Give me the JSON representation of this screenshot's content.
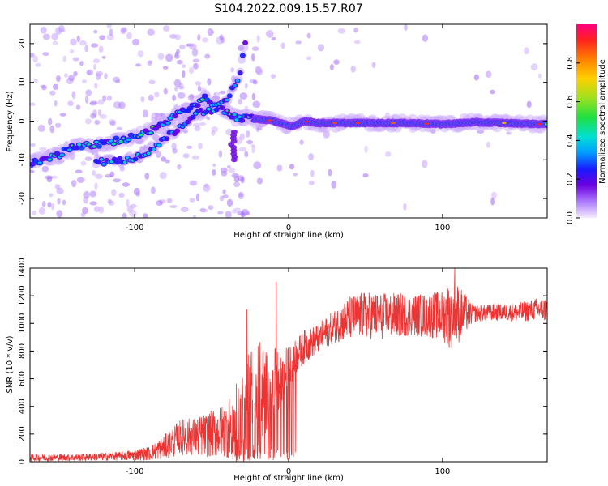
{
  "figure_title": "S104.2022.009.15.57.R07",
  "chart_data": [
    {
      "type": "heatmap",
      "title": "S104.2022.009.15.57.R07",
      "xlabel": "Height of straight line (km)",
      "ylabel": "Frequency (Hz)",
      "xlim": [
        -168,
        168
      ],
      "ylim": [
        -25,
        25
      ],
      "xticks": [
        -100,
        0,
        100
      ],
      "yticks": [
        -20,
        -10,
        0,
        10,
        20
      ],
      "colorbar": {
        "label": "Normalized spectral amplitude",
        "range": [
          0,
          1
        ],
        "ticks": [
          0.0,
          0.2,
          0.4,
          0.6,
          0.8
        ],
        "colormap": [
          "#f2e6ff",
          "#b080ff",
          "#6a00e0",
          "#1a1aff",
          "#00b0ff",
          "#00e0c0",
          "#40e040",
          "#c0e020",
          "#ffd000",
          "#ff8000",
          "#ff2020",
          "#ff0080"
        ]
      },
      "ridge": {
        "description": "dominant frequency trace vs height",
        "points": [
          [
            -168,
            -11
          ],
          [
            -150,
            -9
          ],
          [
            -140,
            -6.5
          ],
          [
            -125,
            -6
          ],
          [
            -110,
            -5
          ],
          [
            -95,
            -3.5
          ],
          [
            -85,
            -1.5
          ],
          [
            -75,
            1
          ],
          [
            -65,
            3
          ],
          [
            -55,
            6
          ],
          [
            -35,
            1
          ],
          [
            -20,
            0.5
          ],
          [
            -12,
            0.2
          ],
          [
            -5,
            -0.5
          ],
          [
            2,
            -1.5
          ],
          [
            10,
            0
          ],
          [
            20,
            -0.5
          ],
          [
            40,
            -0.5
          ],
          [
            60,
            -0.5
          ],
          [
            80,
            -0.5
          ],
          [
            100,
            -0.8
          ],
          [
            120,
            -0.3
          ],
          [
            140,
            -0.5
          ],
          [
            168,
            -0.8
          ]
        ]
      },
      "secondary_ridge": {
        "points": [
          [
            -125,
            -10.5
          ],
          [
            -105,
            -10
          ],
          [
            -92,
            -8
          ],
          [
            -82,
            -5
          ],
          [
            -72,
            -2
          ],
          [
            -62,
            1.5
          ],
          [
            -50,
            3
          ],
          [
            -40,
            5
          ],
          [
            -32,
            12
          ],
          [
            -28,
            20
          ]
        ]
      }
    },
    {
      "type": "line",
      "xlabel": "Height of straight line (km)",
      "ylabel": "SNR (10 * v/v)",
      "xlim": [
        -168,
        168
      ],
      "ylim": [
        0,
        1400
      ],
      "xticks": [
        -100,
        0,
        100
      ],
      "yticks": [
        0,
        200,
        400,
        600,
        800,
        1000,
        1200,
        1400
      ],
      "color": "#ee3333",
      "envelope": {
        "x": [
          -168,
          -140,
          -110,
          -90,
          -80,
          -70,
          -60,
          -50,
          -40,
          -30,
          -25,
          -20,
          -15,
          -10,
          -5,
          0,
          5,
          10,
          15,
          20,
          25,
          30,
          40,
          50,
          60,
          70,
          80,
          90,
          100,
          105,
          110,
          120,
          130,
          140,
          150,
          160,
          168
        ],
        "base": [
          30,
          30,
          40,
          60,
          110,
          180,
          180,
          200,
          230,
          300,
          420,
          480,
          500,
          560,
          600,
          680,
          760,
          830,
          860,
          900,
          940,
          980,
          1040,
          1060,
          1050,
          1060,
          1060,
          1060,
          1060,
          1060,
          1070,
          1070,
          1080,
          1080,
          1080,
          1100,
          1100
        ],
        "amp": [
          25,
          25,
          30,
          50,
          90,
          130,
          140,
          170,
          200,
          350,
          420,
          450,
          300,
          260,
          220,
          150,
          130,
          120,
          110,
          110,
          110,
          120,
          160,
          170,
          170,
          160,
          150,
          160,
          180,
          250,
          220,
          60,
          60,
          60,
          70,
          80,
          90
        ]
      },
      "spikes": [
        {
          "x": -27,
          "y": 1100
        },
        {
          "x": -8,
          "y": 1300
        },
        {
          "x": 108,
          "y": 1410
        },
        {
          "x": 103,
          "y": 1270
        }
      ]
    }
  ]
}
